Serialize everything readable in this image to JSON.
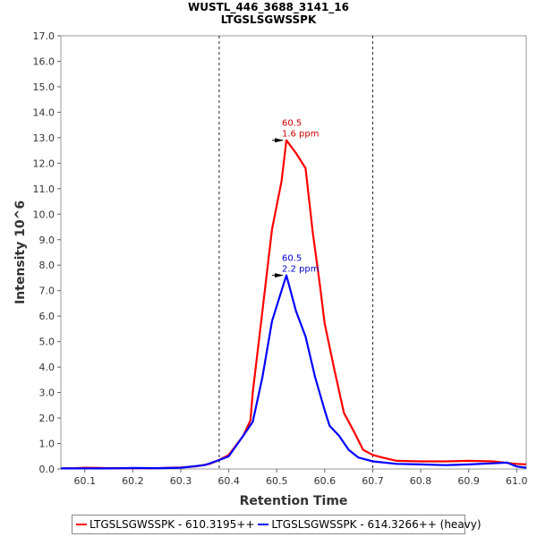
{
  "chart_data": {
    "type": "line",
    "title": "WUSTL_446_3688_3141_16",
    "subtitle": "LTGSLSGWSSPK",
    "xlabel": "Retention Time",
    "ylabel": "Intensity 10^6",
    "xlim": [
      60.05,
      61.02
    ],
    "ylim": [
      0,
      17.0
    ],
    "x_ticks": [
      "60.1",
      "60.2",
      "60.3",
      "60.4",
      "60.5",
      "60.6",
      "60.7",
      "60.8",
      "60.9",
      "61.0"
    ],
    "y_ticks": [
      "0.0",
      "1.0",
      "2.0",
      "3.0",
      "4.0",
      "5.0",
      "6.0",
      "7.0",
      "8.0",
      "9.0",
      "10.0",
      "11.0",
      "12.0",
      "13.0",
      "14.0",
      "15.0",
      "16.0",
      "17.0"
    ],
    "grid": false,
    "legend_position": "bottom",
    "boundaries": [
      60.38,
      60.7
    ],
    "series": [
      {
        "name": "LTGSLSGWSSPK - 610.3195++",
        "color": "#ff0000",
        "points": [
          [
            60.05,
            0.02
          ],
          [
            60.08,
            0.03
          ],
          [
            60.1,
            0.05
          ],
          [
            60.13,
            0.04
          ],
          [
            60.15,
            0.03
          ],
          [
            60.2,
            0.03
          ],
          [
            60.25,
            0.03
          ],
          [
            60.3,
            0.06
          ],
          [
            60.33,
            0.1
          ],
          [
            60.36,
            0.2
          ],
          [
            60.38,
            0.35
          ],
          [
            60.4,
            0.55
          ],
          [
            60.43,
            1.3
          ],
          [
            60.445,
            1.9
          ],
          [
            60.45,
            3.0
          ],
          [
            60.47,
            6.2
          ],
          [
            60.49,
            9.4
          ],
          [
            60.51,
            11.3
          ],
          [
            60.52,
            12.9
          ],
          [
            60.54,
            12.4
          ],
          [
            60.56,
            11.8
          ],
          [
            60.575,
            9.3
          ],
          [
            60.59,
            7.2
          ],
          [
            60.6,
            5.7
          ],
          [
            60.62,
            3.9
          ],
          [
            60.64,
            2.2
          ],
          [
            60.66,
            1.5
          ],
          [
            60.68,
            0.75
          ],
          [
            60.7,
            0.55
          ],
          [
            60.72,
            0.45
          ],
          [
            60.75,
            0.32
          ],
          [
            60.8,
            0.3
          ],
          [
            60.85,
            0.3
          ],
          [
            60.9,
            0.32
          ],
          [
            60.95,
            0.3
          ],
          [
            61.0,
            0.2
          ],
          [
            61.02,
            0.18
          ]
        ]
      },
      {
        "name": "LTGSLSGWSSPK - 614.3266++ (heavy)",
        "color": "#0000ff",
        "points": [
          [
            60.05,
            0.02
          ],
          [
            60.1,
            0.02
          ],
          [
            60.15,
            0.02
          ],
          [
            60.2,
            0.04
          ],
          [
            60.25,
            0.03
          ],
          [
            60.3,
            0.05
          ],
          [
            60.35,
            0.15
          ],
          [
            60.38,
            0.35
          ],
          [
            60.4,
            0.5
          ],
          [
            60.43,
            1.3
          ],
          [
            60.45,
            1.85
          ],
          [
            60.47,
            3.6
          ],
          [
            60.49,
            5.8
          ],
          [
            60.51,
            7.0
          ],
          [
            60.52,
            7.6
          ],
          [
            60.54,
            6.2
          ],
          [
            60.56,
            5.2
          ],
          [
            60.58,
            3.6
          ],
          [
            60.6,
            2.3
          ],
          [
            60.61,
            1.7
          ],
          [
            60.63,
            1.3
          ],
          [
            60.65,
            0.75
          ],
          [
            60.67,
            0.45
          ],
          [
            60.7,
            0.3
          ],
          [
            60.75,
            0.2
          ],
          [
            60.8,
            0.18
          ],
          [
            60.85,
            0.15
          ],
          [
            60.9,
            0.18
          ],
          [
            60.95,
            0.22
          ],
          [
            60.98,
            0.25
          ],
          [
            61.0,
            0.1
          ],
          [
            61.02,
            0.05
          ]
        ]
      }
    ],
    "annotations": [
      {
        "series": 0,
        "x": 60.52,
        "y": 12.9,
        "rt": "60.5",
        "ppm": "1.6 ppm",
        "color": "#cc0000"
      },
      {
        "series": 1,
        "x": 60.52,
        "y": 7.6,
        "rt": "60.5",
        "ppm": "2.2 ppm",
        "color": "#0000cc"
      }
    ]
  },
  "legend": {
    "items": [
      {
        "label": "LTGSLSGWSSPK - 610.3195++",
        "color": "#ff0000"
      },
      {
        "label": "LTGSLSGWSSPK - 614.3266++ (heavy)",
        "color": "#0000ff"
      }
    ]
  }
}
